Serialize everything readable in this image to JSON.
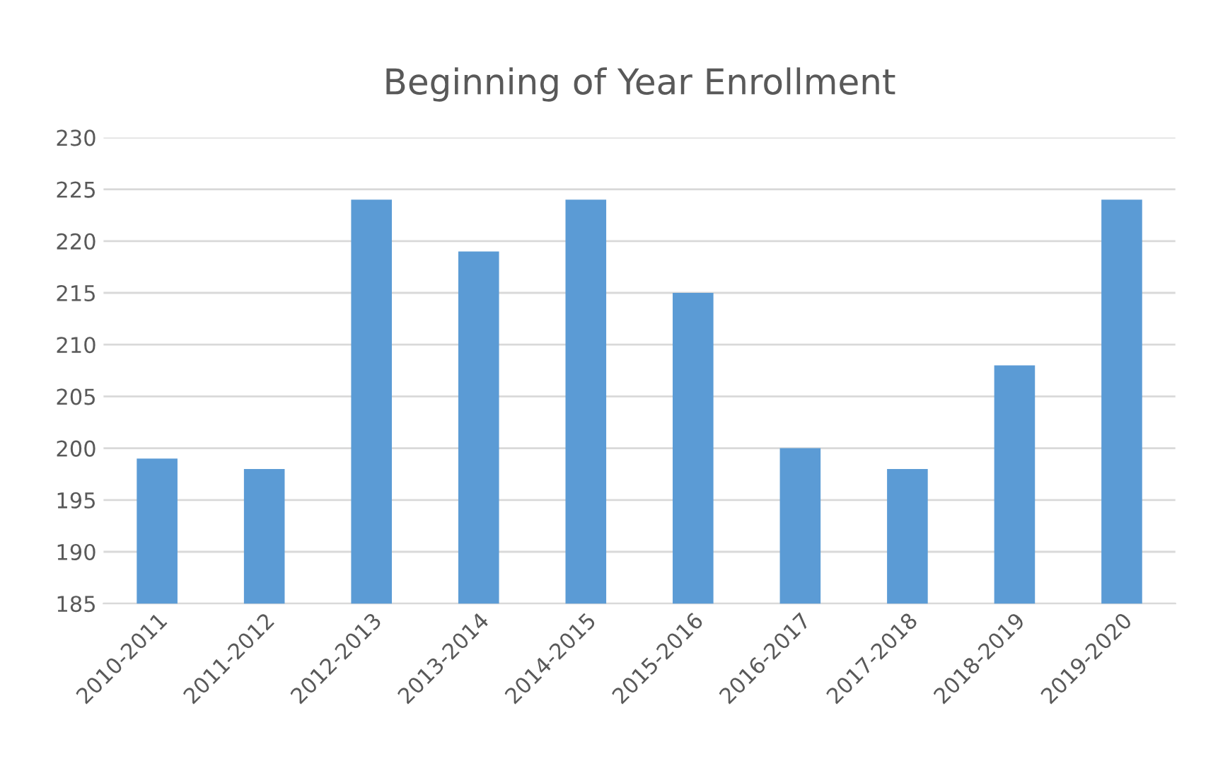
{
  "chart_data": {
    "type": "bar",
    "title": "Beginning of Year Enrollment",
    "categories": [
      "2010-2011",
      "2011-2012",
      "2012-2013",
      "2013-2014",
      "2014-2015",
      "2015-2016",
      "2016-2017",
      "2017-2018",
      "2018-2019",
      "2019-2020"
    ],
    "values": [
      199,
      198,
      224,
      219,
      224,
      215,
      200,
      198,
      208,
      224
    ],
    "color": "#5b9bd5",
    "ylim": [
      185,
      230
    ],
    "yticks": [
      185,
      190,
      195,
      200,
      205,
      210,
      215,
      220,
      225,
      230
    ],
    "grid": "y"
  }
}
